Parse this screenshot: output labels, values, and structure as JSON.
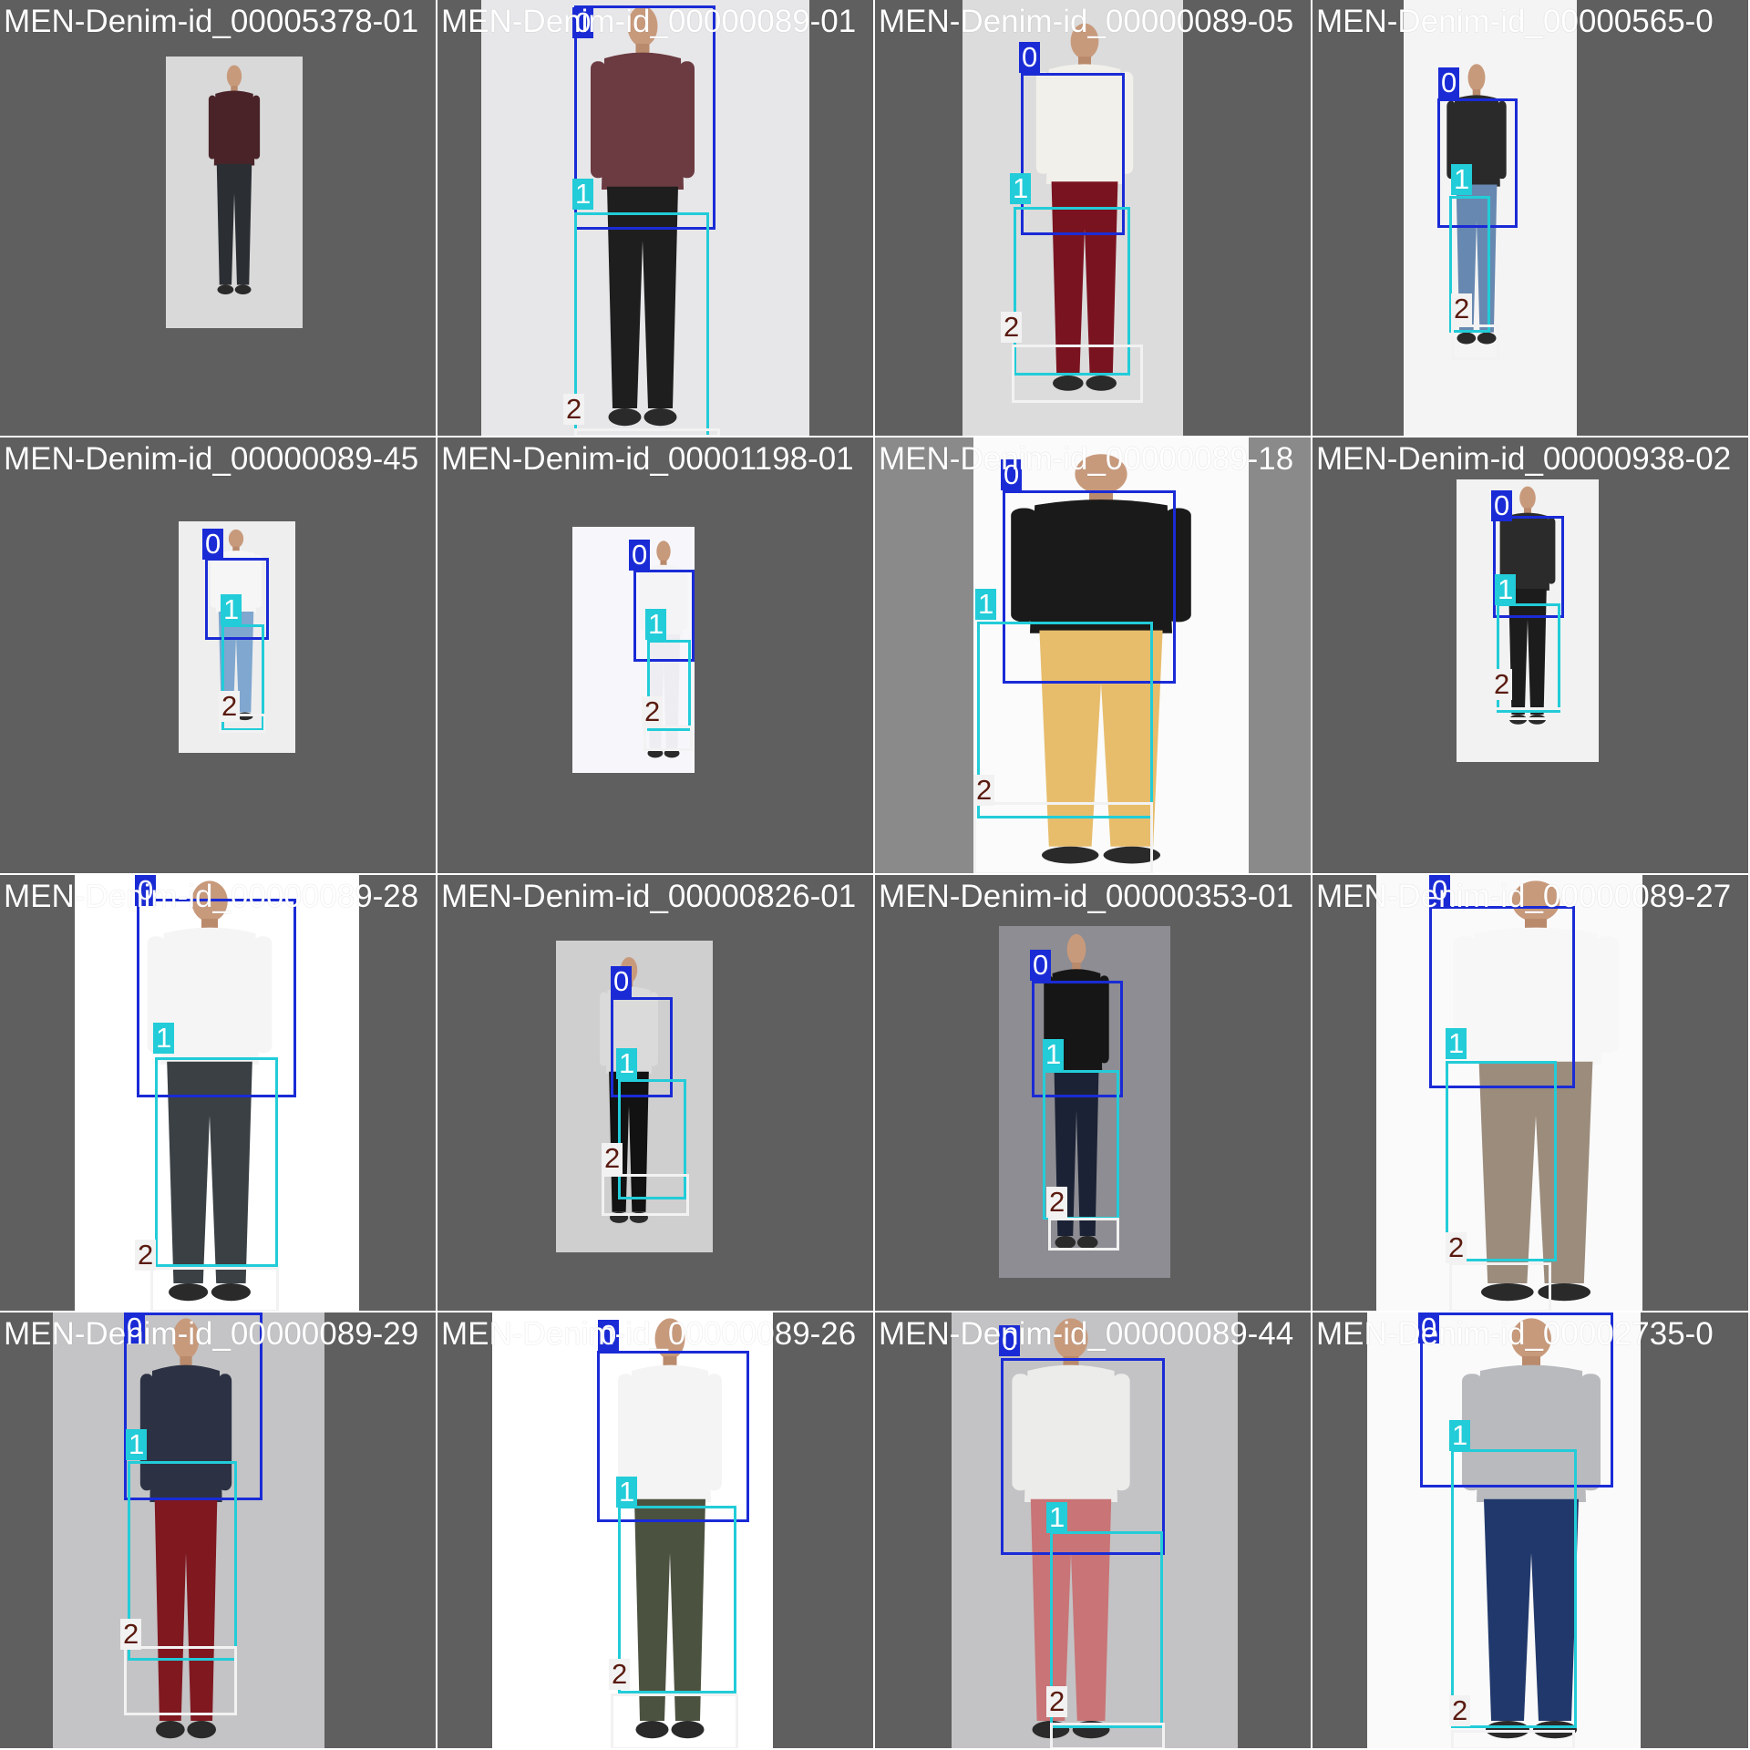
{
  "mosaic": {
    "class_colors": {
      "0": "#1a2bd6",
      "1": "#22ccd8",
      "2": "#f2f2f2"
    },
    "tiles": [
      {
        "name": "MEN-Denim-id_00005378-01",
        "shirt": "#4a2329",
        "pants": "#2b2e33",
        "boxes": []
      },
      {
        "name": "MEN-Denim-id_00000089-01",
        "shirt": "#6b3b41",
        "pants": "#1e1e1e",
        "boxes": [
          {
            "cls": "0",
            "label": "0"
          },
          {
            "cls": "1",
            "label": "1"
          },
          {
            "cls": "2",
            "label": "2"
          }
        ]
      },
      {
        "name": "MEN-Denim-id_00000089-05",
        "shirt": "#f2f0ea",
        "pants": "#7a1320",
        "boxes": [
          {
            "cls": "0",
            "label": "0"
          },
          {
            "cls": "1",
            "label": "1"
          },
          {
            "cls": "2",
            "label": "2"
          }
        ]
      },
      {
        "name": "MEN-Denim-id_00000565-0",
        "shirt": "#2a2a2a",
        "pants": "#6788b0",
        "boxes": [
          {
            "cls": "0",
            "label": "0"
          },
          {
            "cls": "1",
            "label": "1"
          },
          {
            "cls": "2",
            "label": "2"
          }
        ]
      },
      {
        "name": "MEN-Denim-id_00000089-45",
        "shirt": "#f6f6f6",
        "pants": "#7fa7cf",
        "boxes": [
          {
            "cls": "0",
            "label": "0"
          },
          {
            "cls": "1",
            "label": "1"
          },
          {
            "cls": "2",
            "label": "2"
          }
        ]
      },
      {
        "name": "MEN-Denim-id_00001198-01",
        "shirt": "#f4f4f6",
        "pants": "#eeeef2",
        "boxes": [
          {
            "cls": "0",
            "label": "0"
          },
          {
            "cls": "1",
            "label": "1"
          },
          {
            "cls": "2",
            "label": "2"
          }
        ]
      },
      {
        "name": "MEN-Denim-id_00000089-18",
        "shirt": "#1a1a1a",
        "pants": "#e7bd6c",
        "boxes": [
          {
            "cls": "0",
            "label": "0"
          },
          {
            "cls": "1",
            "label": "1"
          },
          {
            "cls": "2",
            "label": "2"
          }
        ]
      },
      {
        "name": "MEN-Denim-id_00000938-02",
        "shirt": "#2b2b2b",
        "pants": "#1c1c1c",
        "boxes": [
          {
            "cls": "0",
            "label": "0"
          },
          {
            "cls": "1",
            "label": "1"
          },
          {
            "cls": "2",
            "label": "2"
          }
        ]
      },
      {
        "name": "MEN-Denim-id_00000089-28",
        "shirt": "#f5f5f5",
        "pants": "#3a4044",
        "boxes": [
          {
            "cls": "0",
            "label": "0"
          },
          {
            "cls": "1",
            "label": "1"
          },
          {
            "cls": "2",
            "label": "2"
          }
        ]
      },
      {
        "name": "MEN-Denim-id_00000826-01",
        "shirt": "#dadada",
        "pants": "#121212",
        "boxes": [
          {
            "cls": "0",
            "label": "0"
          },
          {
            "cls": "1",
            "label": "1"
          },
          {
            "cls": "2",
            "label": "2"
          }
        ]
      },
      {
        "name": "MEN-Denim-id_00000353-01",
        "shirt": "#161616",
        "pants": "#1b2235",
        "boxes": [
          {
            "cls": "0",
            "label": "0"
          },
          {
            "cls": "1",
            "label": "1"
          },
          {
            "cls": "2",
            "label": "2"
          }
        ]
      },
      {
        "name": "MEN-Denim-id_00000089-27",
        "shirt": "#f7f7f7",
        "pants": "#9b8c7c",
        "boxes": [
          {
            "cls": "0",
            "label": "0"
          },
          {
            "cls": "1",
            "label": "1"
          },
          {
            "cls": "2",
            "label": "2"
          }
        ]
      },
      {
        "name": "MEN-Denim-id_00000089-29",
        "shirt": "#2c3244",
        "pants": "#801820",
        "boxes": [
          {
            "cls": "0",
            "label": "0"
          },
          {
            "cls": "1",
            "label": "1"
          },
          {
            "cls": "2",
            "label": "2"
          }
        ]
      },
      {
        "name": "MEN-Denim-id_00000089-26",
        "shirt": "#f4f4f4",
        "pants": "#4c5240",
        "boxes": [
          {
            "cls": "0",
            "label": "0"
          },
          {
            "cls": "1",
            "label": "1"
          },
          {
            "cls": "2",
            "label": "2"
          }
        ]
      },
      {
        "name": "MEN-Denim-id_00000089-44",
        "shirt": "#ececea",
        "pants": "#c97476",
        "boxes": [
          {
            "cls": "0",
            "label": "0"
          },
          {
            "cls": "1",
            "label": "1"
          },
          {
            "cls": "2",
            "label": "2"
          }
        ]
      },
      {
        "name": "MEN-Denim-id_00002735-0",
        "shirt": "#b9babe",
        "pants": "#20386b",
        "boxes": [
          {
            "cls": "0",
            "label": "0"
          },
          {
            "cls": "1",
            "label": "1"
          },
          {
            "cls": "2",
            "label": "2"
          }
        ]
      }
    ]
  }
}
